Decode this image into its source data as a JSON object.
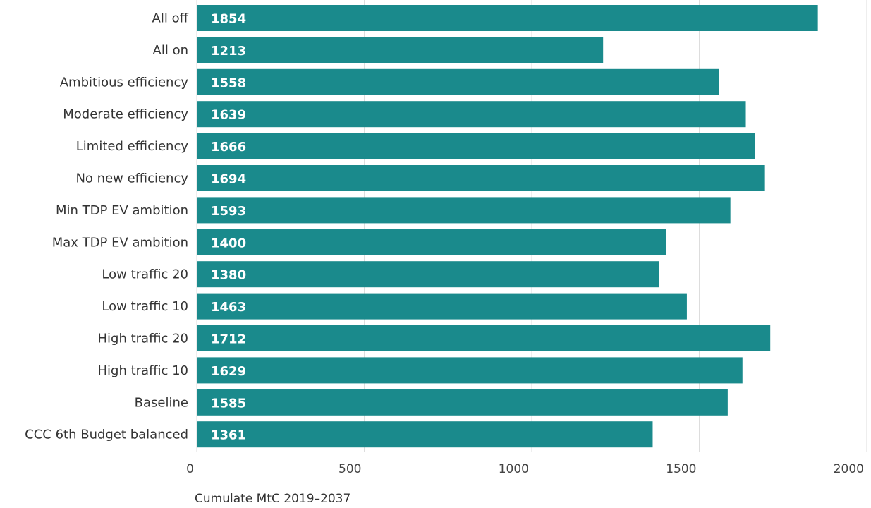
{
  "chart_data": {
    "type": "bar",
    "orientation": "horizontal",
    "categories": [
      "All off",
      "All on",
      "Ambitious efficiency",
      "Moderate efficiency",
      "Limited efficiency",
      "No new efficiency",
      "Min TDP EV ambition",
      "Max TDP EV ambition",
      "Low traffic 20",
      "Low traffic 10",
      "High traffic 20",
      "High traffic 10",
      "Baseline",
      "CCC 6th Budget balanced"
    ],
    "values": [
      1854,
      1213,
      1558,
      1639,
      1666,
      1694,
      1593,
      1400,
      1380,
      1463,
      1712,
      1629,
      1585,
      1361
    ],
    "xlabel": "Cumulate MtC 2019–2037",
    "xlim": [
      0,
      2000
    ],
    "xticks": [
      0,
      500,
      1000,
      1500,
      2000
    ],
    "grid": "vertical",
    "bar_color": "#1a8a8c",
    "value_label_color": "#ffffff"
  }
}
